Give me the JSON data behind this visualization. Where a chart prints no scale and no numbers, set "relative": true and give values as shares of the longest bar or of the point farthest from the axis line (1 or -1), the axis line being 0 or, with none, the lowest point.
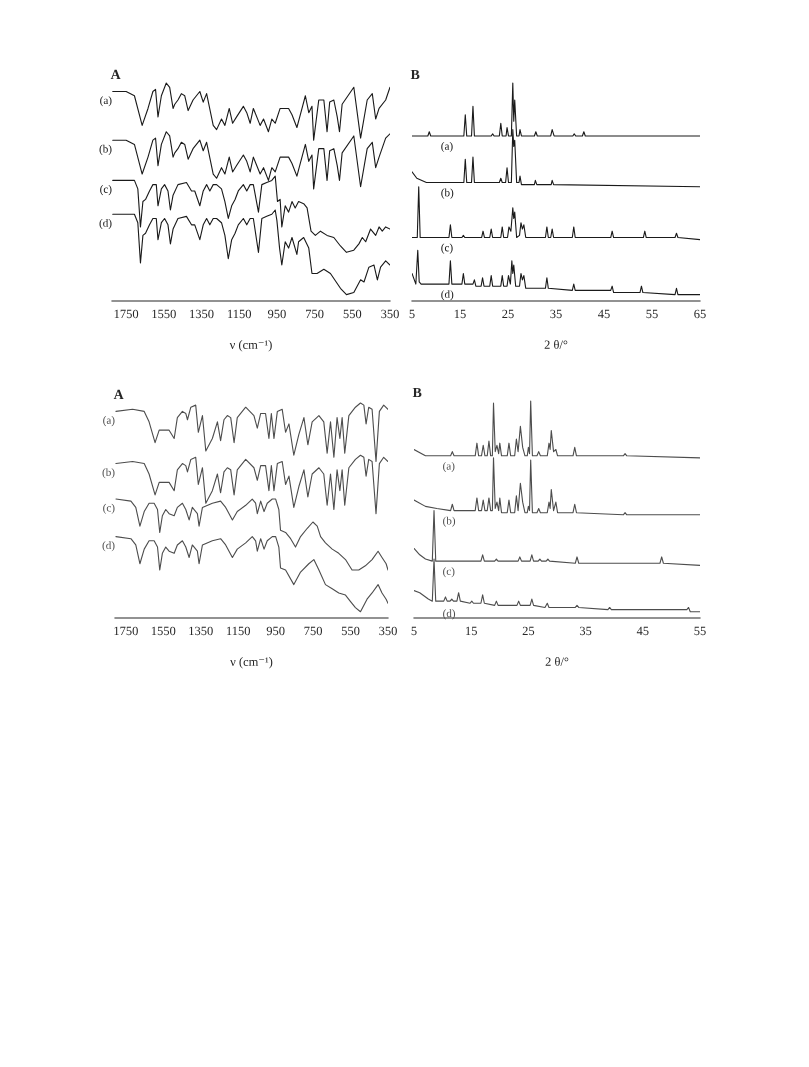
{
  "chart_data": [
    {
      "type": "line",
      "title": "A",
      "xlabel": "ν (cm⁻¹)",
      "relative": true,
      "xlim": [
        1825,
        350
      ],
      "xticks": [
        1750,
        1550,
        1350,
        1150,
        950,
        750,
        550,
        350
      ],
      "series": [
        {
          "name": "(a)",
          "color": "#1a1a1a",
          "x": [
            1821,
            1750,
            1706,
            1665,
            1634,
            1608,
            1594,
            1581,
            1563,
            1537,
            1519,
            1501,
            1492,
            1475,
            1457,
            1439,
            1421,
            1395,
            1359,
            1341,
            1323,
            1288,
            1270,
            1244,
            1226,
            1203,
            1185,
            1164,
            1128,
            1110,
            1092,
            1075,
            1039,
            1021,
            995,
            977,
            959,
            933,
            888,
            870,
            844,
            826,
            799,
            781,
            764,
            755,
            728,
            701,
            684,
            670,
            648,
            630,
            618,
            604,
            542,
            506,
            471,
            444,
            426,
            408,
            373,
            350
          ],
          "values": [
            0.96,
            0.96,
            0.94,
            0.8,
            0.88,
            0.96,
            0.97,
            0.84,
            0.94,
            1.0,
            0.98,
            0.88,
            0.9,
            0.92,
            0.95,
            0.94,
            0.87,
            0.92,
            0.96,
            0.91,
            0.95,
            0.8,
            0.78,
            0.83,
            0.8,
            0.88,
            0.81,
            0.84,
            0.89,
            0.86,
            0.81,
            0.88,
            0.8,
            0.83,
            0.77,
            0.83,
            0.81,
            0.88,
            0.88,
            0.85,
            0.79,
            0.85,
            0.94,
            0.86,
            0.89,
            0.73,
            0.92,
            0.92,
            0.77,
            0.91,
            0.92,
            0.84,
            0.77,
            0.9,
            0.98,
            0.74,
            0.92,
            0.95,
            0.83,
            0.88,
            0.92,
            0.98
          ]
        },
        {
          "name": "(b)",
          "color": "#1a1a1a",
          "x": [
            1821,
            1750,
            1706,
            1665,
            1634,
            1608,
            1594,
            1581,
            1563,
            1537,
            1519,
            1501,
            1492,
            1475,
            1457,
            1439,
            1421,
            1395,
            1359,
            1341,
            1323,
            1288,
            1270,
            1244,
            1226,
            1203,
            1185,
            1164,
            1128,
            1110,
            1092,
            1075,
            1039,
            1021,
            995,
            977,
            959,
            933,
            888,
            870,
            844,
            826,
            799,
            781,
            764,
            755,
            728,
            701,
            684,
            670,
            648,
            630,
            618,
            604,
            542,
            506,
            471,
            444,
            426,
            408,
            373,
            350
          ],
          "values": [
            0.73,
            0.73,
            0.71,
            0.57,
            0.65,
            0.73,
            0.74,
            0.61,
            0.71,
            0.77,
            0.75,
            0.65,
            0.67,
            0.69,
            0.72,
            0.71,
            0.64,
            0.69,
            0.73,
            0.68,
            0.72,
            0.57,
            0.55,
            0.6,
            0.57,
            0.65,
            0.58,
            0.61,
            0.66,
            0.63,
            0.58,
            0.65,
            0.57,
            0.6,
            0.54,
            0.6,
            0.58,
            0.65,
            0.65,
            0.62,
            0.56,
            0.62,
            0.71,
            0.63,
            0.66,
            0.5,
            0.69,
            0.69,
            0.54,
            0.68,
            0.69,
            0.61,
            0.54,
            0.67,
            0.75,
            0.51,
            0.69,
            0.72,
            0.6,
            0.65,
            0.74,
            0.76
          ]
        },
        {
          "name": "(c)",
          "color": "#1a1a1a",
          "x": [
            1821,
            1706,
            1688,
            1674,
            1661,
            1647,
            1626,
            1608,
            1590,
            1581,
            1563,
            1546,
            1528,
            1515,
            1501,
            1475,
            1430,
            1403,
            1386,
            1359,
            1341,
            1323,
            1306,
            1288,
            1270,
            1244,
            1226,
            1208,
            1190,
            1172,
            1155,
            1128,
            1110,
            1092,
            1075,
            1048,
            1030,
            1004,
            977,
            959,
            947,
            933,
            924,
            906,
            888,
            870,
            853,
            835,
            808,
            790,
            769,
            746,
            719,
            684,
            648,
            613,
            581,
            542,
            515,
            497,
            479,
            453,
            426,
            408,
            391,
            373,
            350
          ],
          "values": [
            0.54,
            0.54,
            0.5,
            0.32,
            0.44,
            0.45,
            0.49,
            0.52,
            0.52,
            0.42,
            0.5,
            0.52,
            0.49,
            0.4,
            0.47,
            0.52,
            0.53,
            0.49,
            0.49,
            0.42,
            0.49,
            0.52,
            0.49,
            0.52,
            0.52,
            0.5,
            0.44,
            0.36,
            0.42,
            0.45,
            0.49,
            0.52,
            0.49,
            0.52,
            0.52,
            0.39,
            0.52,
            0.53,
            0.54,
            0.56,
            0.44,
            0.45,
            0.32,
            0.42,
            0.39,
            0.44,
            0.41,
            0.44,
            0.43,
            0.41,
            0.3,
            0.28,
            0.3,
            0.28,
            0.27,
            0.23,
            0.2,
            0.21,
            0.24,
            0.27,
            0.25,
            0.31,
            0.28,
            0.32,
            0.3,
            0.32,
            0.31
          ]
        },
        {
          "name": "(d)",
          "color": "#1a1a1a",
          "x": [
            1821,
            1706,
            1688,
            1674,
            1661,
            1647,
            1626,
            1608,
            1590,
            1581,
            1563,
            1546,
            1528,
            1515,
            1501,
            1475,
            1430,
            1403,
            1386,
            1359,
            1341,
            1323,
            1306,
            1288,
            1270,
            1244,
            1226,
            1208,
            1190,
            1172,
            1155,
            1128,
            1110,
            1092,
            1075,
            1048,
            1030,
            1004,
            977,
            959,
            950,
            936,
            924,
            906,
            888,
            870,
            844,
            835,
            808,
            781,
            764,
            737,
            701,
            666,
            613,
            581,
            542,
            506,
            488,
            462,
            435,
            417,
            400,
            373,
            350
          ],
          "values": [
            0.38,
            0.38,
            0.34,
            0.15,
            0.28,
            0.29,
            0.33,
            0.36,
            0.36,
            0.26,
            0.34,
            0.36,
            0.33,
            0.24,
            0.31,
            0.36,
            0.37,
            0.33,
            0.33,
            0.26,
            0.33,
            0.36,
            0.33,
            0.36,
            0.36,
            0.34,
            0.28,
            0.17,
            0.26,
            0.29,
            0.33,
            0.36,
            0.33,
            0.36,
            0.36,
            0.2,
            0.36,
            0.37,
            0.38,
            0.4,
            0.35,
            0.22,
            0.14,
            0.25,
            0.22,
            0.27,
            0.19,
            0.25,
            0.27,
            0.22,
            0.1,
            0.1,
            0.12,
            0.1,
            0.03,
            0.0,
            0.01,
            0.07,
            0.06,
            0.13,
            0.14,
            0.07,
            0.13,
            0.16,
            0.14
          ]
        }
      ]
    },
    {
      "type": "line",
      "title": "B",
      "xlabel": "2 θ/°",
      "relative": true,
      "xlim": [
        5,
        65
      ],
      "xticks": [
        5,
        15,
        25,
        35,
        45,
        55,
        65
      ],
      "series": [
        {
          "name": "(a)",
          "color": "#1a1a1a",
          "x": [
            5,
            8.3,
            8.6,
            8.9,
            15.8,
            16.1,
            16.4,
            17.4,
            17.7,
            18.0,
            21.5,
            21.8,
            22.1,
            23.2,
            23.5,
            23.8,
            24.6,
            24.8,
            25.1,
            25.7,
            26.0,
            26.2,
            26.4,
            26.8,
            27.3,
            27.5,
            27.8,
            30.5,
            30.8,
            31.1,
            33.9,
            34.2,
            34.6,
            38.5,
            38.8,
            39.1,
            40.5,
            40.8,
            41.1,
            65
          ],
          "values": [
            0.75,
            0.75,
            0.77,
            0.75,
            0.75,
            0.85,
            0.75,
            0.75,
            0.89,
            0.75,
            0.75,
            0.76,
            0.75,
            0.75,
            0.81,
            0.75,
            0.75,
            0.79,
            0.75,
            0.75,
            1.0,
            0.82,
            0.92,
            0.75,
            0.75,
            0.78,
            0.75,
            0.75,
            0.77,
            0.75,
            0.75,
            0.78,
            0.75,
            0.75,
            0.76,
            0.75,
            0.75,
            0.77,
            0.75,
            0.75
          ]
        },
        {
          "name": "(b)",
          "color": "#1a1a1a",
          "x": [
            5,
            6,
            8,
            15.8,
            16.1,
            16.4,
            17.4,
            17.7,
            18.0,
            23.2,
            23.5,
            23.8,
            24.5,
            24.8,
            25.1,
            25.7,
            26.0,
            26.2,
            26.4,
            26.8,
            27.3,
            27.5,
            27.8,
            30.5,
            30.7,
            31.0,
            34.0,
            34.2,
            34.5,
            65
          ],
          "values": [
            0.58,
            0.55,
            0.53,
            0.53,
            0.64,
            0.53,
            0.53,
            0.65,
            0.53,
            0.53,
            0.55,
            0.53,
            0.53,
            0.6,
            0.53,
            0.53,
            0.78,
            0.7,
            0.73,
            0.53,
            0.53,
            0.56,
            0.52,
            0.52,
            0.54,
            0.52,
            0.52,
            0.54,
            0.52,
            0.51
          ]
        },
        {
          "name": "(c)",
          "color": "#1a1a1a",
          "x": [
            5,
            6.1,
            6.4,
            6.7,
            12.7,
            13.0,
            13.3,
            15.4,
            15.7,
            16.0,
            19.5,
            19.8,
            20.1,
            21.2,
            21.5,
            21.8,
            23.5,
            23.8,
            24.1,
            24.9,
            25.2,
            25.6,
            26.0,
            26.2,
            26.4,
            26.8,
            27.4,
            27.7,
            28.0,
            28.3,
            28.7,
            32.8,
            33.1,
            33.4,
            33.9,
            34.2,
            34.5,
            38.4,
            38.7,
            39.0,
            46.4,
            46.7,
            47.0,
            53.2,
            53.5,
            53.8,
            59.8,
            60.1,
            60.4,
            65
          ],
          "values": [
            0.27,
            0.27,
            0.51,
            0.27,
            0.27,
            0.33,
            0.27,
            0.27,
            0.28,
            0.27,
            0.27,
            0.3,
            0.27,
            0.27,
            0.31,
            0.27,
            0.27,
            0.32,
            0.27,
            0.27,
            0.32,
            0.3,
            0.41,
            0.36,
            0.39,
            0.27,
            0.28,
            0.34,
            0.31,
            0.33,
            0.27,
            0.27,
            0.32,
            0.27,
            0.27,
            0.31,
            0.27,
            0.27,
            0.32,
            0.27,
            0.27,
            0.3,
            0.27,
            0.27,
            0.3,
            0.27,
            0.27,
            0.29,
            0.27,
            0.26
          ]
        },
        {
          "name": "(d)",
          "color": "#1a1a1a",
          "x": [
            5,
            5.8,
            6.2,
            6.5,
            6.9,
            12.7,
            13.0,
            13.3,
            15.4,
            15.7,
            16.0,
            17.7,
            18.0,
            18.3,
            19.4,
            19.7,
            20.0,
            21.2,
            21.5,
            21.8,
            23.5,
            23.8,
            24.1,
            24.8,
            25.1,
            25.5,
            25.8,
            26.0,
            26.2,
            26.6,
            27.4,
            27.7,
            28.0,
            28.3,
            28.7,
            32.8,
            33.1,
            33.4,
            38.4,
            38.7,
            39.0,
            46.4,
            46.7,
            47.0,
            52.5,
            52.8,
            53.1,
            59.8,
            60.1,
            60.4,
            65
          ],
          "values": [
            0.1,
            0.05,
            0.21,
            0.06,
            0.05,
            0.05,
            0.16,
            0.05,
            0.05,
            0.1,
            0.05,
            0.05,
            0.07,
            0.04,
            0.04,
            0.08,
            0.04,
            0.04,
            0.09,
            0.04,
            0.04,
            0.09,
            0.04,
            0.04,
            0.09,
            0.05,
            0.16,
            0.1,
            0.14,
            0.04,
            0.04,
            0.1,
            0.07,
            0.09,
            0.03,
            0.03,
            0.08,
            0.03,
            0.02,
            0.05,
            0.02,
            0.02,
            0.04,
            0.01,
            0.01,
            0.04,
            0.01,
            0.0,
            0.03,
            0.0,
            0.0
          ]
        }
      ]
    },
    {
      "type": "line",
      "title": "A",
      "xlabel": "ν (cm⁻¹)",
      "relative": true,
      "xlim": [
        1808,
        350
      ],
      "xticks": [
        1750,
        1550,
        1350,
        1150,
        950,
        750,
        550,
        350
      ],
      "series": [
        {
          "name": "(a)",
          "color": "#4d4d4d",
          "x": [
            1803,
            1714,
            1652,
            1626,
            1594,
            1572,
            1546,
            1519,
            1492,
            1475,
            1448,
            1430,
            1421,
            1403,
            1377,
            1363,
            1341,
            1323,
            1288,
            1261,
            1244,
            1226,
            1208,
            1190,
            1172,
            1155,
            1110,
            1066,
            1048,
            1030,
            1004,
            986,
            973,
            959,
            941,
            915,
            897,
            879,
            853,
            826,
            799,
            778,
            755,
            719,
            693,
            675,
            657,
            639,
            622,
            607,
            595,
            581,
            559,
            524,
            497,
            479,
            467,
            453,
            435,
            414,
            396,
            373,
            350
          ],
          "values": [
            0.96,
            0.97,
            0.96,
            0.91,
            0.81,
            0.87,
            0.87,
            0.87,
            0.83,
            0.93,
            0.96,
            0.95,
            0.92,
            0.98,
            0.99,
            0.86,
            0.94,
            0.77,
            0.83,
            0.91,
            0.82,
            0.92,
            0.94,
            0.93,
            0.81,
            0.93,
            0.98,
            0.94,
            0.88,
            0.95,
            0.95,
            0.83,
            0.95,
            0.83,
            0.96,
            0.97,
            0.86,
            0.9,
            0.75,
            0.85,
            0.93,
            0.8,
            0.91,
            0.94,
            0.91,
            0.76,
            0.91,
            0.74,
            0.93,
            0.83,
            0.93,
            0.76,
            0.94,
            0.98,
            1.0,
            0.99,
            0.9,
            0.98,
            0.97,
            0.72,
            0.96,
            0.99,
            0.97
          ]
        },
        {
          "name": "(b)",
          "color": "#4d4d4d",
          "x": [
            1803,
            1714,
            1652,
            1626,
            1594,
            1572,
            1546,
            1519,
            1492,
            1475,
            1448,
            1430,
            1421,
            1403,
            1377,
            1363,
            1341,
            1323,
            1288,
            1261,
            1244,
            1226,
            1208,
            1190,
            1172,
            1155,
            1110,
            1066,
            1048,
            1030,
            1004,
            986,
            973,
            959,
            941,
            915,
            897,
            879,
            853,
            826,
            799,
            778,
            755,
            719,
            693,
            675,
            657,
            639,
            622,
            607,
            595,
            581,
            559,
            524,
            497,
            479,
            467,
            453,
            435,
            414,
            396,
            373,
            350
          ],
          "values": [
            0.71,
            0.72,
            0.71,
            0.66,
            0.56,
            0.62,
            0.62,
            0.62,
            0.58,
            0.68,
            0.71,
            0.7,
            0.67,
            0.73,
            0.74,
            0.61,
            0.69,
            0.52,
            0.58,
            0.66,
            0.57,
            0.67,
            0.69,
            0.68,
            0.56,
            0.68,
            0.73,
            0.69,
            0.63,
            0.7,
            0.7,
            0.58,
            0.7,
            0.58,
            0.71,
            0.72,
            0.61,
            0.65,
            0.5,
            0.6,
            0.68,
            0.55,
            0.66,
            0.69,
            0.66,
            0.51,
            0.66,
            0.49,
            0.68,
            0.58,
            0.68,
            0.51,
            0.69,
            0.73,
            0.75,
            0.74,
            0.65,
            0.73,
            0.72,
            0.47,
            0.71,
            0.74,
            0.72
          ]
        },
        {
          "name": "(c)",
          "color": "#4d4d4d",
          "x": [
            1803,
            1723,
            1697,
            1675,
            1652,
            1626,
            1599,
            1581,
            1569,
            1555,
            1537,
            1519,
            1492,
            1475,
            1448,
            1430,
            1412,
            1395,
            1368,
            1359,
            1341,
            1288,
            1244,
            1217,
            1181,
            1155,
            1110,
            1075,
            1057,
            1048,
            1030,
            1012,
            995,
            968,
            950,
            933,
            924,
            897,
            870,
            844,
            817,
            781,
            751,
            728,
            710,
            684,
            648,
            613,
            577,
            542,
            506,
            471,
            435,
            403,
            382,
            360,
            350
          ],
          "values": [
            0.54,
            0.53,
            0.5,
            0.41,
            0.48,
            0.52,
            0.52,
            0.49,
            0.38,
            0.46,
            0.49,
            0.47,
            0.46,
            0.5,
            0.52,
            0.49,
            0.44,
            0.5,
            0.47,
            0.41,
            0.5,
            0.52,
            0.53,
            0.5,
            0.44,
            0.48,
            0.51,
            0.54,
            0.52,
            0.47,
            0.53,
            0.48,
            0.52,
            0.54,
            0.54,
            0.49,
            0.39,
            0.38,
            0.35,
            0.31,
            0.36,
            0.4,
            0.43,
            0.41,
            0.36,
            0.33,
            0.3,
            0.28,
            0.25,
            0.2,
            0.2,
            0.22,
            0.25,
            0.29,
            0.26,
            0.23,
            0.2
          ]
        },
        {
          "name": "(d)",
          "color": "#4d4d4d",
          "x": [
            1803,
            1723,
            1697,
            1675,
            1652,
            1626,
            1599,
            1581,
            1569,
            1555,
            1537,
            1519,
            1492,
            1475,
            1448,
            1430,
            1412,
            1395,
            1368,
            1359,
            1341,
            1288,
            1244,
            1217,
            1181,
            1155,
            1110,
            1075,
            1057,
            1048,
            1030,
            1012,
            995,
            968,
            950,
            933,
            924,
            897,
            853,
            817,
            773,
            746,
            719,
            684,
            648,
            613,
            577,
            551,
            524,
            497,
            462,
            435,
            403,
            382,
            360,
            350
          ],
          "values": [
            0.36,
            0.35,
            0.32,
            0.23,
            0.3,
            0.34,
            0.34,
            0.31,
            0.2,
            0.28,
            0.31,
            0.29,
            0.28,
            0.32,
            0.34,
            0.31,
            0.26,
            0.32,
            0.29,
            0.23,
            0.32,
            0.34,
            0.35,
            0.32,
            0.26,
            0.3,
            0.33,
            0.36,
            0.34,
            0.29,
            0.35,
            0.3,
            0.34,
            0.36,
            0.36,
            0.31,
            0.21,
            0.2,
            0.13,
            0.19,
            0.23,
            0.25,
            0.2,
            0.13,
            0.11,
            0.09,
            0.08,
            0.05,
            0.02,
            0.0,
            0.06,
            0.09,
            0.13,
            0.09,
            0.06,
            0.04
          ]
        }
      ]
    },
    {
      "type": "line",
      "title": "B",
      "xlabel": "2 θ/°",
      "relative": true,
      "xlim": [
        5,
        55
      ],
      "xticks": [
        5,
        15,
        25,
        35,
        45,
        55
      ],
      "series": [
        {
          "name": "(a)",
          "color": "#4d4d4d",
          "x": [
            5,
            7,
            9,
            11.4,
            11.7,
            12.0,
            15.7,
            16.0,
            16.3,
            16.8,
            17.1,
            17.4,
            17.8,
            18.1,
            18.4,
            18.7,
            18.9,
            19.2,
            19.5,
            19.8,
            20.0,
            20.3,
            21.3,
            21.6,
            21.9,
            22.6,
            22.9,
            23.2,
            23.6,
            24.0,
            24.4,
            24.8,
            25.0,
            25.2,
            25.4,
            25.7,
            26.5,
            26.8,
            27.1,
            28.3,
            28.6,
            28.8,
            29.0,
            29.4,
            29.8,
            30.1,
            32.8,
            33.1,
            33.4,
            41.6,
            41.9,
            42.2,
            55
          ],
          "values": [
            0.77,
            0.74,
            0.74,
            0.74,
            0.76,
            0.74,
            0.74,
            0.8,
            0.74,
            0.74,
            0.79,
            0.74,
            0.74,
            0.81,
            0.74,
            0.74,
            0.99,
            0.76,
            0.79,
            0.75,
            0.8,
            0.74,
            0.74,
            0.8,
            0.74,
            0.74,
            0.82,
            0.76,
            0.88,
            0.78,
            0.74,
            0.74,
            0.78,
            0.75,
            1.0,
            0.74,
            0.74,
            0.76,
            0.74,
            0.74,
            0.8,
            0.77,
            0.86,
            0.76,
            0.77,
            0.74,
            0.74,
            0.78,
            0.74,
            0.74,
            0.75,
            0.74,
            0.73
          ]
        },
        {
          "name": "(b)",
          "color": "#4d4d4d",
          "x": [
            5,
            7,
            9,
            11.4,
            11.7,
            12.0,
            15.7,
            16.0,
            16.3,
            16.8,
            17.1,
            17.4,
            17.8,
            18.1,
            18.4,
            18.7,
            18.9,
            19.2,
            19.5,
            19.8,
            20.0,
            20.3,
            21.3,
            21.6,
            21.9,
            22.6,
            22.9,
            23.2,
            23.6,
            24.0,
            24.4,
            24.8,
            25.0,
            25.2,
            25.4,
            25.7,
            26.5,
            26.8,
            27.1,
            28.3,
            28.6,
            28.8,
            29.0,
            29.4,
            29.8,
            30.1,
            32.8,
            33.1,
            33.4,
            41.6,
            41.9,
            42.2,
            55
          ],
          "values": [
            0.53,
            0.5,
            0.49,
            0.48,
            0.51,
            0.48,
            0.48,
            0.54,
            0.48,
            0.48,
            0.53,
            0.48,
            0.48,
            0.54,
            0.48,
            0.48,
            0.73,
            0.49,
            0.52,
            0.48,
            0.54,
            0.47,
            0.47,
            0.53,
            0.47,
            0.47,
            0.55,
            0.48,
            0.61,
            0.52,
            0.47,
            0.47,
            0.5,
            0.48,
            0.72,
            0.47,
            0.47,
            0.49,
            0.47,
            0.47,
            0.52,
            0.49,
            0.58,
            0.48,
            0.52,
            0.47,
            0.47,
            0.51,
            0.47,
            0.46,
            0.47,
            0.46,
            0.46
          ]
        },
        {
          "name": "(c)",
          "color": "#4d4d4d",
          "x": [
            5,
            6,
            7,
            8.2,
            8.5,
            8.8,
            16.7,
            17.0,
            17.3,
            19.1,
            19.4,
            19.7,
            23.2,
            23.5,
            23.8,
            25.3,
            25.6,
            25.9,
            26.7,
            27.0,
            27.3,
            28.1,
            28.4,
            28.7,
            33.2,
            33.5,
            33.8,
            48.0,
            48.3,
            48.6,
            55
          ],
          "values": [
            0.3,
            0.27,
            0.25,
            0.24,
            0.48,
            0.24,
            0.24,
            0.27,
            0.24,
            0.24,
            0.25,
            0.24,
            0.24,
            0.26,
            0.24,
            0.24,
            0.27,
            0.24,
            0.24,
            0.25,
            0.24,
            0.24,
            0.25,
            0.24,
            0.23,
            0.26,
            0.23,
            0.23,
            0.26,
            0.23,
            0.22
          ]
        },
        {
          "name": "(d)",
          "color": "#4d4d4d",
          "x": [
            5,
            6,
            7.5,
            8.2,
            8.5,
            8.8,
            10.2,
            10.5,
            10.8,
            11.3,
            11.6,
            11.9,
            12.5,
            12.8,
            13.1,
            14.8,
            15.1,
            15.4,
            16.7,
            17.0,
            17.3,
            19.1,
            19.4,
            19.7,
            23.0,
            23.3,
            23.6,
            25.3,
            25.6,
            25.9,
            27.9,
            28.3,
            28.6,
            33.2,
            33.5,
            33.8,
            38.9,
            39.2,
            39.5,
            52.7,
            53.0,
            53.3,
            55
          ],
          "values": [
            0.1,
            0.09,
            0.06,
            0.05,
            0.25,
            0.05,
            0.05,
            0.07,
            0.05,
            0.05,
            0.06,
            0.05,
            0.05,
            0.09,
            0.05,
            0.04,
            0.05,
            0.04,
            0.04,
            0.08,
            0.04,
            0.03,
            0.05,
            0.03,
            0.03,
            0.05,
            0.03,
            0.03,
            0.06,
            0.03,
            0.02,
            0.04,
            0.02,
            0.02,
            0.03,
            0.02,
            0.01,
            0.02,
            0.01,
            0.01,
            0.02,
            0.0,
            0.0
          ]
        }
      ]
    }
  ]
}
